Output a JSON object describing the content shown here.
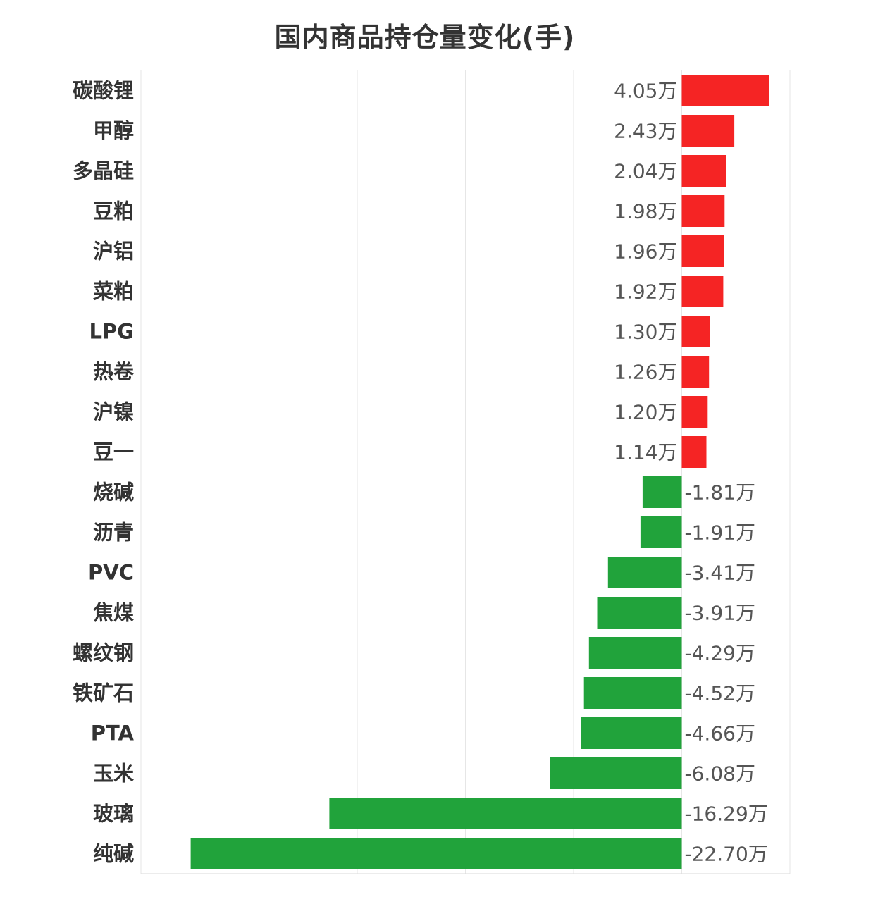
{
  "chart_data": {
    "type": "bar",
    "orientation": "horizontal",
    "title": "国内商品持仓量变化(手)",
    "unit": "万",
    "categories": [
      "碳酸锂",
      "甲醇",
      "多晶硅",
      "豆粕",
      "沪铝",
      "菜粕",
      "LPG",
      "热卷",
      "沪镍",
      "豆一",
      "烧碱",
      "沥青",
      "PVC",
      "焦煤",
      "螺纹钢",
      "铁矿石",
      "PTA",
      "玉米",
      "玻璃",
      "纯碱"
    ],
    "values": [
      4.05,
      2.43,
      2.04,
      1.98,
      1.96,
      1.92,
      1.3,
      1.26,
      1.2,
      1.14,
      -1.81,
      -1.91,
      -3.41,
      -3.91,
      -4.29,
      -4.52,
      -4.66,
      -6.08,
      -16.29,
      -22.7
    ],
    "value_labels": [
      "4.05万",
      "2.43万",
      "2.04万",
      "1.98万",
      "1.96万",
      "1.92万",
      "1.30万",
      "1.26万",
      "1.20万",
      "1.14万",
      "-1.81万",
      "-1.91万",
      "-3.41万",
      "-3.91万",
      "-4.29万",
      "-4.52万",
      "-4.66万",
      "-6.08万",
      "-16.29万",
      "-22.70万"
    ],
    "xlim": [
      -25,
      5
    ],
    "grid": true,
    "legend": "none",
    "colors": {
      "positive": "#f52424",
      "negative": "#21a33b"
    }
  }
}
